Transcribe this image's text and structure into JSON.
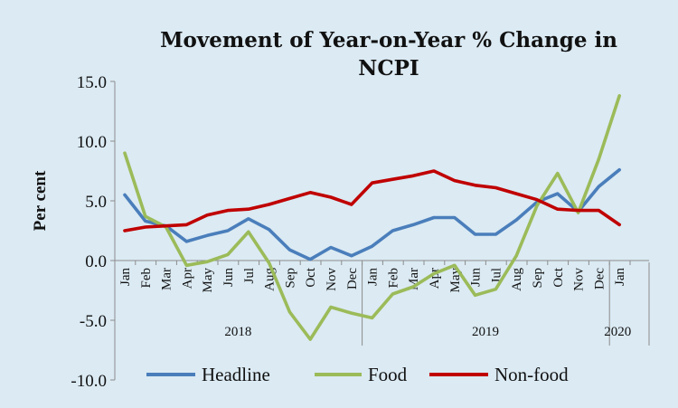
{
  "chart_data": {
    "type": "line",
    "title_lines": [
      "Movement of Year-on-Year % Change in",
      "NCPI"
    ],
    "ylabel": "Per cent",
    "ylim": [
      -10,
      15
    ],
    "yticks": [
      "15.0",
      "10.0",
      "5.0",
      "0.0",
      "-5.0",
      "-10.0"
    ],
    "ytick_values": [
      15,
      10,
      5,
      0,
      -5,
      -10
    ],
    "categories": [
      "Jan",
      "Feb",
      "Mar",
      "Apr",
      "May",
      "Jun",
      "Jul",
      "Aug",
      "Sep",
      "Oct",
      "Nov",
      "Dec",
      "Jan",
      "Feb",
      "Mar",
      "Apr",
      "May",
      "Jun",
      "Jul",
      "Aug",
      "Sep",
      "Oct",
      "Nov",
      "Dec",
      "Jan"
    ],
    "year_groups": [
      {
        "label": "2018",
        "start": 0,
        "end": 11
      },
      {
        "label": "2019",
        "start": 12,
        "end": 23
      },
      {
        "label": "2020",
        "start": 24,
        "end": 24
      }
    ],
    "series": [
      {
        "name": "Headline",
        "color": "#4a7ebb",
        "values": [
          5.5,
          3.3,
          2.9,
          1.6,
          2.1,
          2.5,
          3.5,
          2.6,
          0.9,
          0.1,
          1.1,
          0.4,
          1.2,
          2.5,
          3.0,
          3.6,
          3.6,
          2.2,
          2.2,
          3.4,
          4.9,
          5.6,
          4.1,
          6.2,
          7.6
        ]
      },
      {
        "name": "Food",
        "color": "#9bbb59",
        "values": [
          9.0,
          3.7,
          2.8,
          -0.4,
          -0.1,
          0.5,
          2.4,
          -0.2,
          -4.3,
          -6.6,
          -3.9,
          -4.4,
          -4.8,
          -2.8,
          -2.2,
          -1.1,
          -0.4,
          -2.9,
          -2.4,
          0.4,
          4.6,
          7.3,
          4.0,
          8.5,
          13.8
        ]
      },
      {
        "name": "Non-food",
        "color": "#c00000",
        "values": [
          2.5,
          2.8,
          2.9,
          3.0,
          3.8,
          4.2,
          4.3,
          4.7,
          5.2,
          5.7,
          5.3,
          4.7,
          6.5,
          6.8,
          7.1,
          7.5,
          6.7,
          6.3,
          6.1,
          5.6,
          5.1,
          4.3,
          4.2,
          4.2,
          3.0
        ]
      }
    ]
  }
}
